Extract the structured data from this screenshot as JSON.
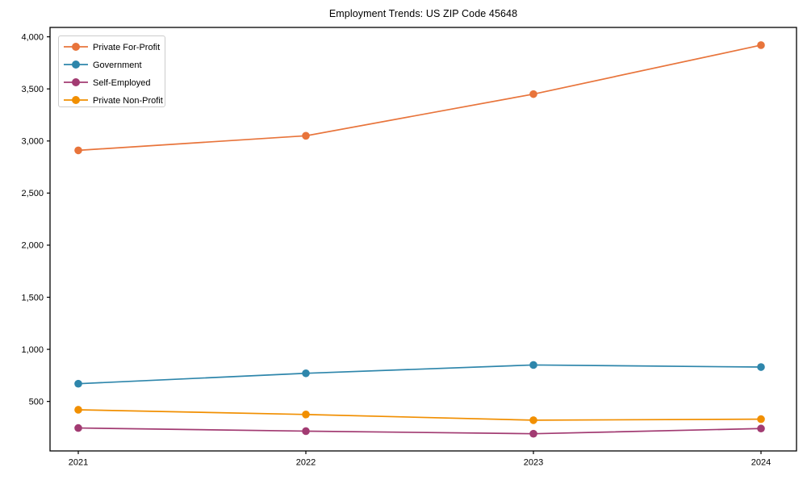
{
  "title": "Employment Trends: US ZIP Code 45648",
  "chart_data": {
    "type": "line",
    "title": "Employment Trends: US ZIP Code 45648",
    "xlabel": "",
    "ylabel": "",
    "x": [
      2021,
      2022,
      2023,
      2024
    ],
    "xtick_labels": [
      "2021",
      "2022",
      "2023",
      "2024"
    ],
    "series": [
      {
        "name": "Private For-Profit",
        "color": "#E8743B",
        "values": [
          2910,
          3050,
          3450,
          3920
        ]
      },
      {
        "name": "Government",
        "color": "#2E86AB",
        "values": [
          670,
          770,
          850,
          830
        ]
      },
      {
        "name": "Self-Employed",
        "color": "#A23B72",
        "values": [
          245,
          215,
          190,
          240
        ]
      },
      {
        "name": "Private Non-Profit",
        "color": "#F18F01",
        "values": [
          420,
          375,
          320,
          330
        ]
      }
    ],
    "yticks": [
      500,
      1000,
      1500,
      2000,
      2500,
      3000,
      3500,
      4000
    ],
    "ytick_labels": [
      "500",
      "1,000",
      "1,500",
      "2,000",
      "2,500",
      "3,000",
      "3,500",
      "4,000"
    ],
    "ylim": [
      25,
      4090
    ],
    "grid": false,
    "legend_position": "upper left",
    "marker": "circle",
    "colors": {
      "axis": "#000000",
      "tick_text": "#000000",
      "background": "#ffffff",
      "legend_border": "#cccccc",
      "legend_background": "#ffffff"
    }
  }
}
